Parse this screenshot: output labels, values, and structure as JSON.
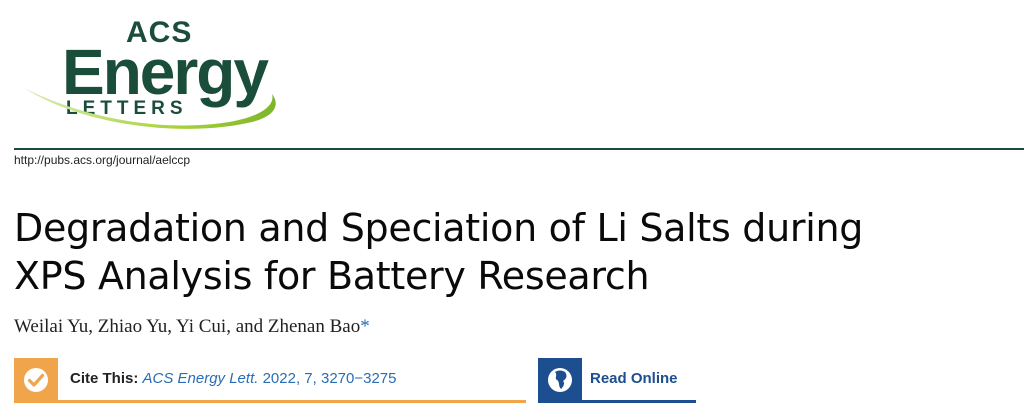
{
  "journal": {
    "logo_line1": "ACS",
    "logo_line2": "Energy",
    "logo_line3": "LETTERS",
    "url": "http://pubs.acs.org/journal/aelccp"
  },
  "article": {
    "title_line1": "Degradation and Speciation of Li Salts during",
    "title_line2": "XPS Analysis for Battery Research",
    "authors": "Weilai Yu, Zhiao Yu, Yi Cui, and Zhenan Bao",
    "corresponding_mark": "*"
  },
  "cite": {
    "label": "Cite This:",
    "journal_abbrev": "ACS Energy Lett.",
    "details": "2022, 7, 3270−3275",
    "icon": "check-icon",
    "color": "#f0a54a"
  },
  "read_online": {
    "label": "Read Online",
    "icon": "globe-icon",
    "color": "#1d4e8f"
  },
  "colors": {
    "brand_green": "#1a4d3a",
    "logo_swoosh": "#a8d23a",
    "link_blue": "#2a6db5"
  }
}
